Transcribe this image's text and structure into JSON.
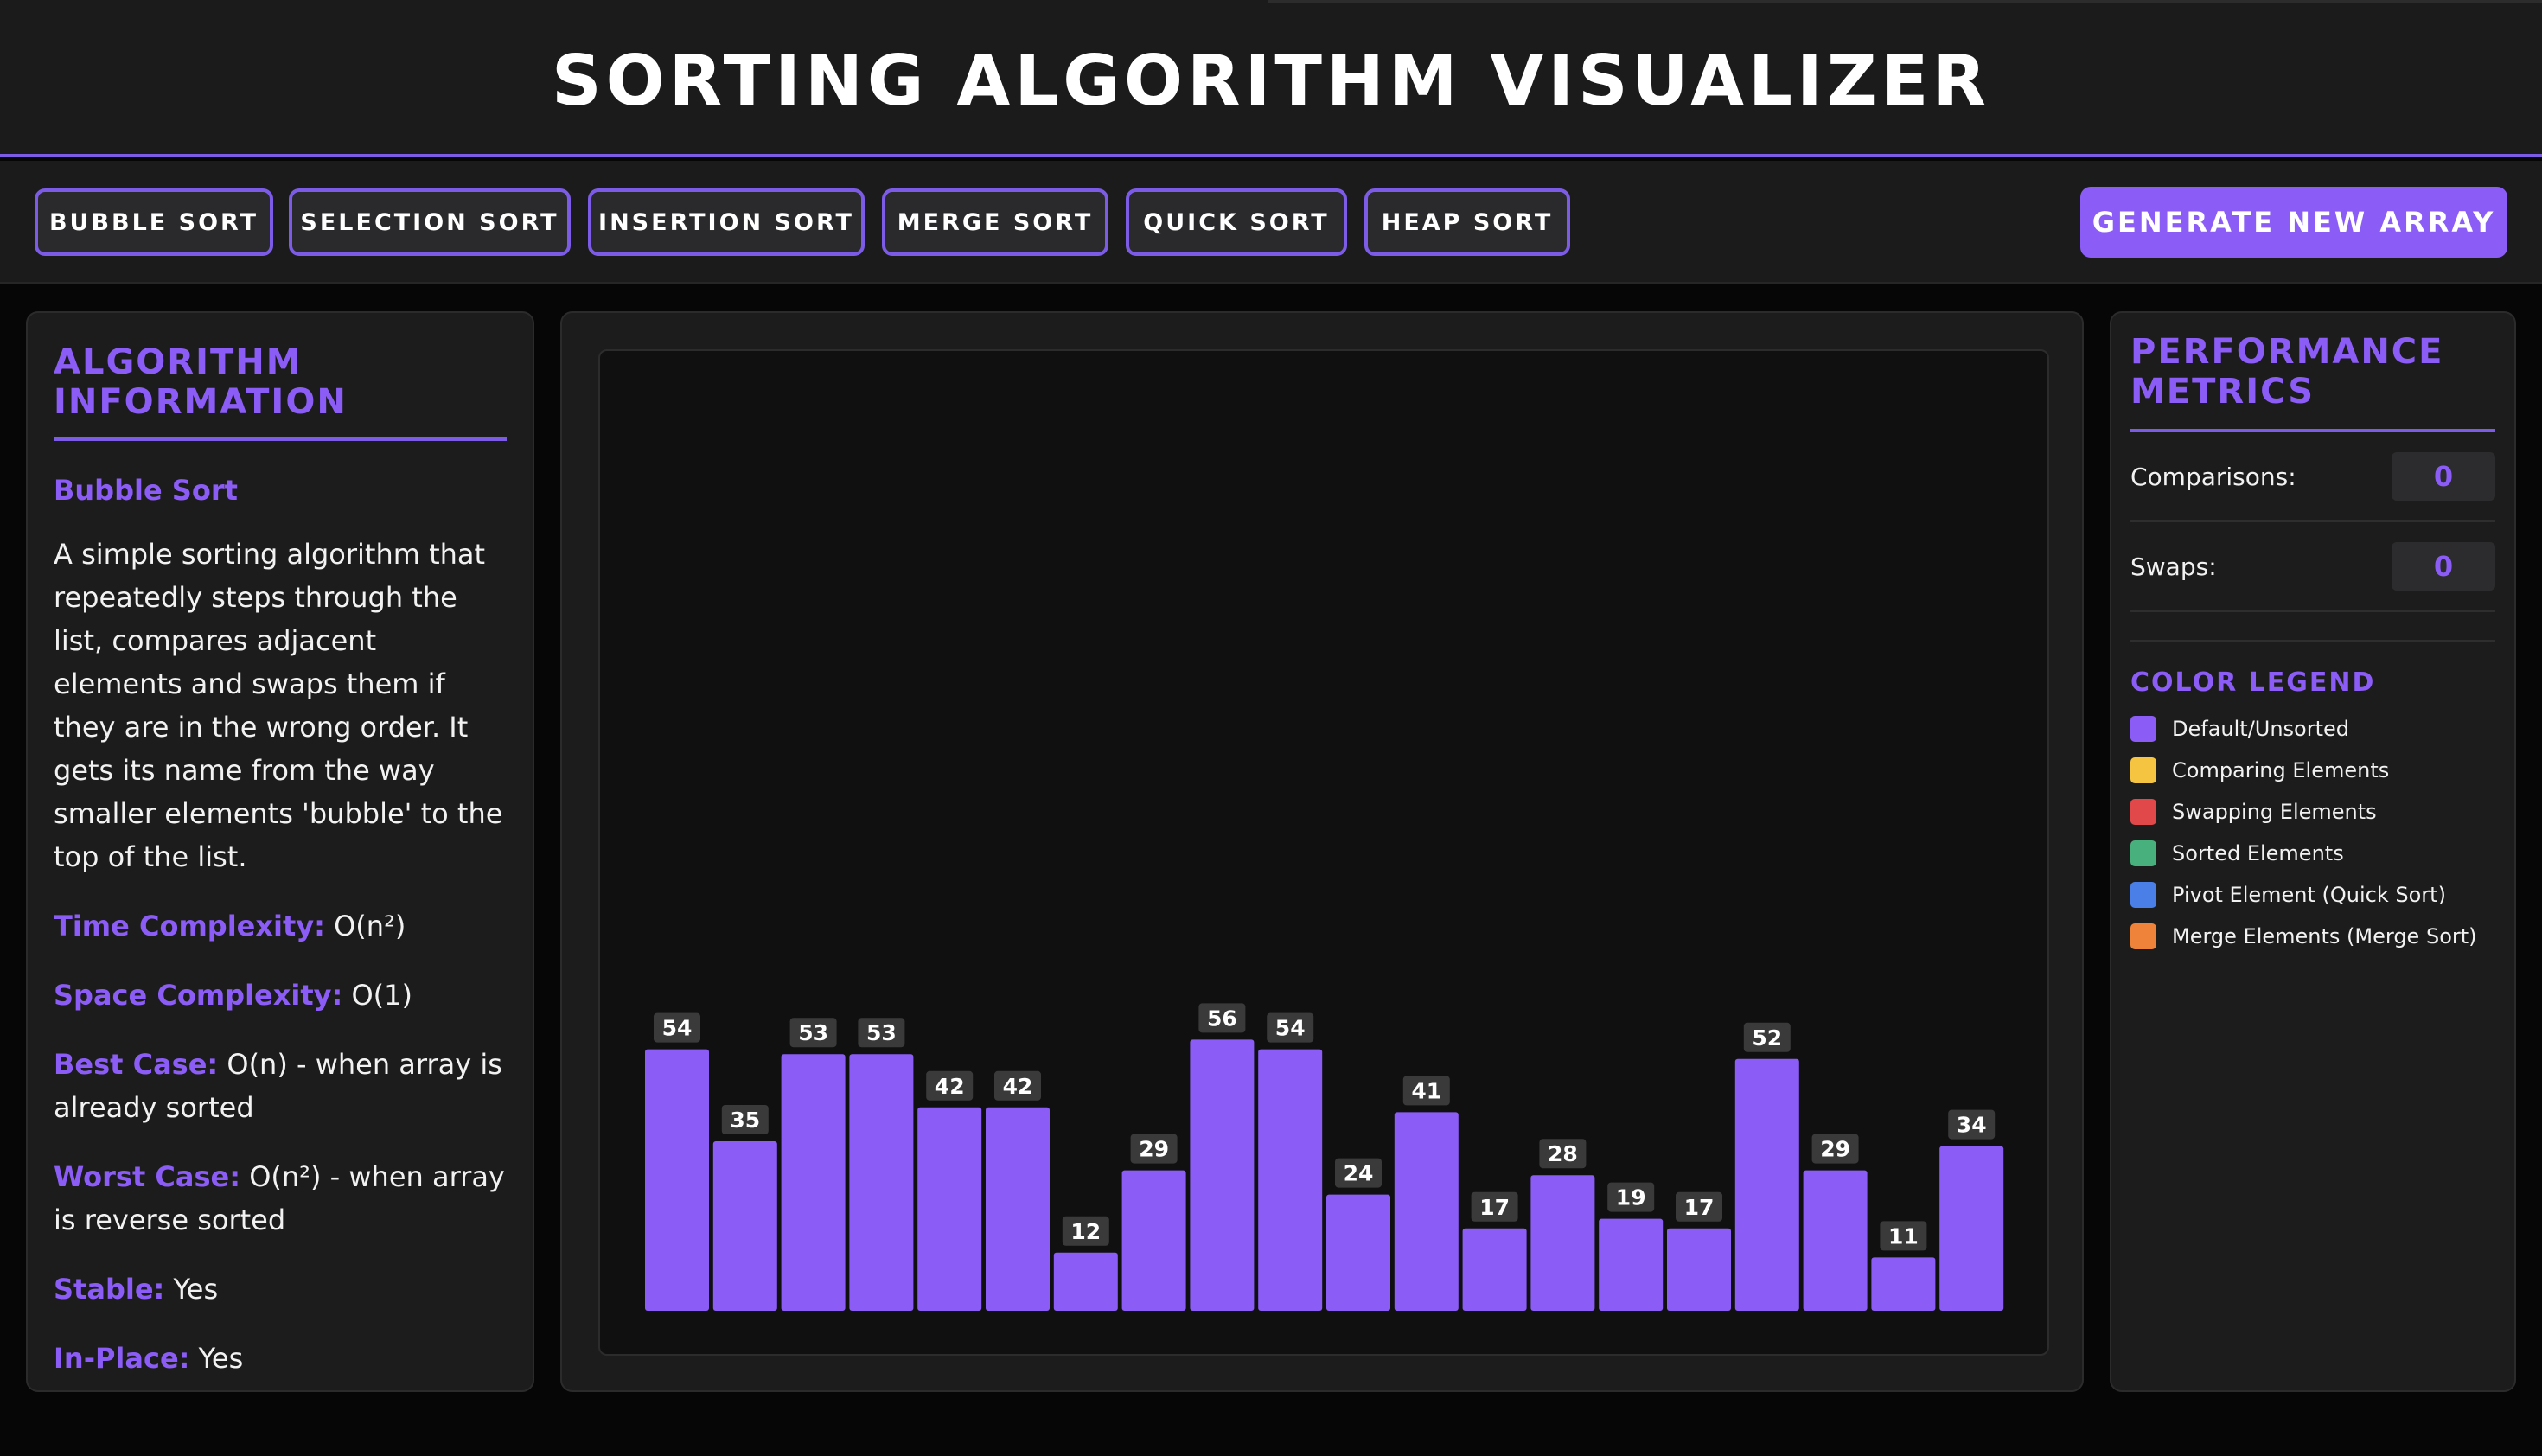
{
  "header": {
    "title": "SORTING ALGORITHM VISUALIZER"
  },
  "toolbar": {
    "algorithms": [
      "BUBBLE SORT",
      "SELECTION SORT",
      "INSERTION SORT",
      "MERGE SORT",
      "QUICK SORT",
      "HEAP SORT"
    ],
    "generate_label": "GENERATE NEW ARRAY"
  },
  "info": {
    "title": "ALGORITHM INFORMATION",
    "name": "Bubble Sort",
    "description": "A simple sorting algorithm that repeatedly steps through the list, compares adjacent elements and swaps them if they are in the wrong order. It gets its name from the way smaller elements 'bubble' to the top of the list.",
    "time_label": "Time Complexity:",
    "time_value": "O(n²)",
    "space_label": "Space Complexity:",
    "space_value": "O(1)",
    "best_label": "Best Case:",
    "best_value": "O(n) - when array is already sorted",
    "worst_label": "Worst Case:",
    "worst_value": "O(n²) - when array is reverse sorted",
    "stable_label": "Stable:",
    "stable_value": "Yes",
    "inplace_label": "In-Place:",
    "inplace_value": "Yes"
  },
  "metrics": {
    "title": "PERFORMANCE METRICS",
    "comparisons_label": "Comparisons:",
    "comparisons_value": "0",
    "swaps_label": "Swaps:",
    "swaps_value": "0"
  },
  "legend": {
    "title": "COLOR LEGEND",
    "items": [
      {
        "label": "Default/Unsorted",
        "color": "#8b5cf6"
      },
      {
        "label": "Comparing Elements",
        "color": "#f5c542"
      },
      {
        "label": "Swapping Elements",
        "color": "#e0484a"
      },
      {
        "label": "Sorted Elements",
        "color": "#48b07c"
      },
      {
        "label": "Pivot Element (Quick Sort)",
        "color": "#4a7fe8"
      },
      {
        "label": "Merge Elements (Merge Sort)",
        "color": "#f0833a"
      }
    ]
  },
  "colors": {
    "accent": "#8b5cf6",
    "bar": "#8b5cf6",
    "value_tag_bg": "#3a3a3a"
  },
  "chart_data": {
    "type": "bar",
    "values": [
      54,
      35,
      53,
      53,
      42,
      42,
      12,
      29,
      56,
      54,
      24,
      41,
      17,
      28,
      19,
      17,
      52,
      29,
      11,
      34
    ],
    "ylim": [
      0,
      100
    ],
    "title": "",
    "xlabel": "",
    "ylabel": ""
  }
}
